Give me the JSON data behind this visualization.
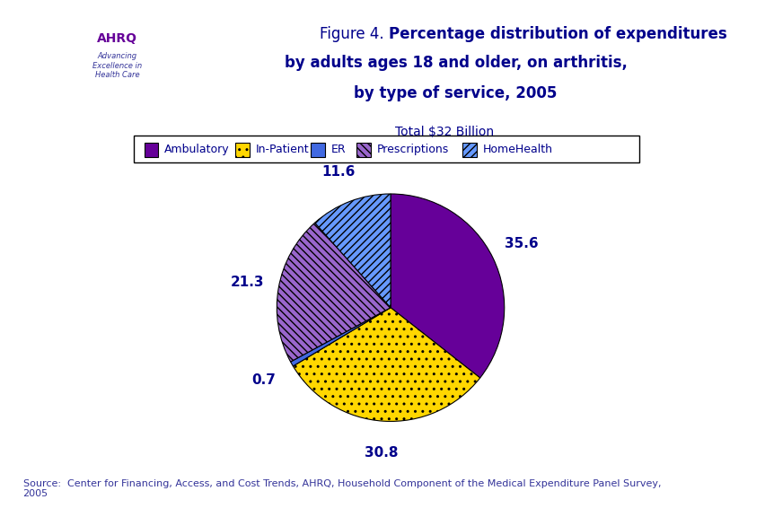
{
  "title_normal": "Figure 4. ",
  "title_bold1": "Percentage distribution of",
  "title_bold2": " expenditures",
  "title_line2": "by adults ages 18 and older, on arthritis,",
  "title_line3": "by type of service, 2005",
  "subtitle": "Total $32 Billion",
  "labels": [
    "Ambulatory",
    "In-Patient",
    "ER",
    "Prescriptions",
    "HomeHealth"
  ],
  "values": [
    35.6,
    30.8,
    0.7,
    21.3,
    11.6
  ],
  "colors": [
    "#660099",
    "#FFD700",
    "#4169E1",
    "#9966CC",
    "#6699FF"
  ],
  "hatch": [
    "",
    "..",
    "",
    "\\\\\\\\",
    "////"
  ],
  "label_values": [
    "35.6",
    "30.8",
    "0.7",
    "21.3",
    "11.6"
  ],
  "source_text": "Source:  Center for Financing, Access, and Cost Trends, AHRQ, Household Component of the Medical Expenditure Panel Survey,\n2005",
  "title_color": "#00008B",
  "label_color": "#00008B",
  "border_color": "#00008B",
  "background_color": "#FFFFFF",
  "legend_hatch": [
    "",
    "..",
    "",
    "\\\\\\\\",
    "////"
  ],
  "legend_colors": [
    "#660099",
    "#FFD700",
    "#4169E1",
    "#9966CC",
    "#6699FF"
  ]
}
